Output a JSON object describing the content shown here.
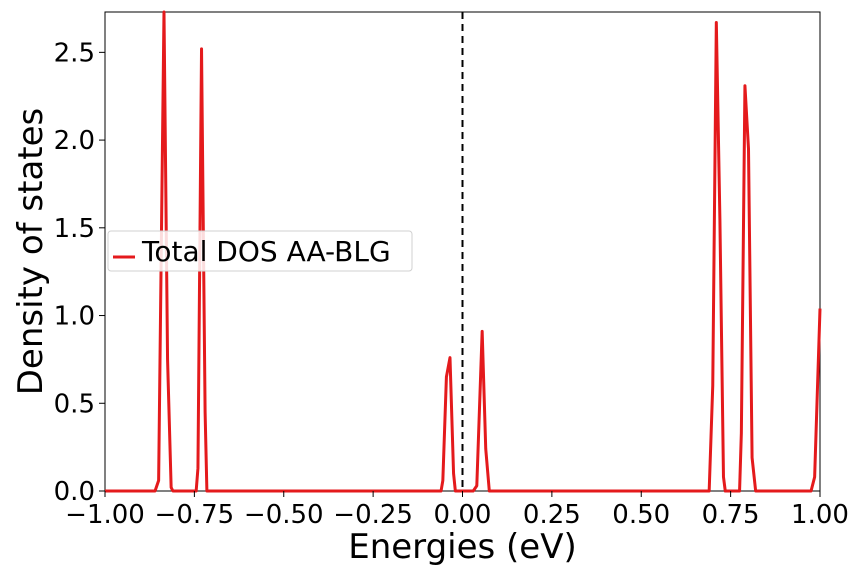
{
  "chart_data": {
    "type": "line",
    "title": "",
    "xlabel": "Energies (eV)",
    "ylabel": "Density of states",
    "xlim": [
      -1.0,
      1.0
    ],
    "ylim": [
      0.0,
      2.73
    ],
    "x_ticks": [
      -1.0,
      -0.75,
      -0.5,
      -0.25,
      0.0,
      0.25,
      0.5,
      0.75,
      1.0
    ],
    "x_tick_labels": [
      "−1.00",
      "−0.75",
      "−0.50",
      "−0.25",
      "0.00",
      "0.25",
      "0.50",
      "0.75",
      "1.00"
    ],
    "y_ticks": [
      0.0,
      0.5,
      1.0,
      1.5,
      2.0,
      2.5
    ],
    "y_tick_labels": [
      "0.0",
      "0.5",
      "1.0",
      "1.5",
      "2.0",
      "2.5"
    ],
    "grid": false,
    "legend_position": "center-left",
    "vertical_reference_line": {
      "x": 0.0,
      "style": "dashed",
      "color": "#000000"
    },
    "series": [
      {
        "name": "Total DOS AA-BLG",
        "color": "#e41a1c",
        "points": [
          [
            -1.0,
            0.0
          ],
          [
            -0.86,
            0.0
          ],
          [
            -0.85,
            0.06
          ],
          [
            -0.835,
            2.73
          ],
          [
            -0.825,
            0.75
          ],
          [
            -0.815,
            0.02
          ],
          [
            -0.81,
            0.0
          ],
          [
            -0.745,
            0.0
          ],
          [
            -0.74,
            0.13
          ],
          [
            -0.73,
            2.52
          ],
          [
            -0.72,
            0.45
          ],
          [
            -0.715,
            0.0
          ],
          [
            -0.06,
            0.0
          ],
          [
            -0.055,
            0.06
          ],
          [
            -0.045,
            0.65
          ],
          [
            -0.035,
            0.76
          ],
          [
            -0.025,
            0.1
          ],
          [
            -0.02,
            0.0
          ],
          [
            0.03,
            0.0
          ],
          [
            0.04,
            0.03
          ],
          [
            0.055,
            0.91
          ],
          [
            0.065,
            0.24
          ],
          [
            0.075,
            0.0
          ],
          [
            0.69,
            0.0
          ],
          [
            0.7,
            0.6
          ],
          [
            0.71,
            2.67
          ],
          [
            0.72,
            1.55
          ],
          [
            0.73,
            0.08
          ],
          [
            0.735,
            0.0
          ],
          [
            0.775,
            0.0
          ],
          [
            0.78,
            0.33
          ],
          [
            0.79,
            2.31
          ],
          [
            0.8,
            1.95
          ],
          [
            0.81,
            0.19
          ],
          [
            0.82,
            0.0
          ],
          [
            0.975,
            0.0
          ],
          [
            0.985,
            0.08
          ],
          [
            1.0,
            1.04
          ]
        ]
      }
    ]
  },
  "colors": {
    "line": "#e41a1c",
    "axes": "#000000",
    "background": "#ffffff"
  }
}
